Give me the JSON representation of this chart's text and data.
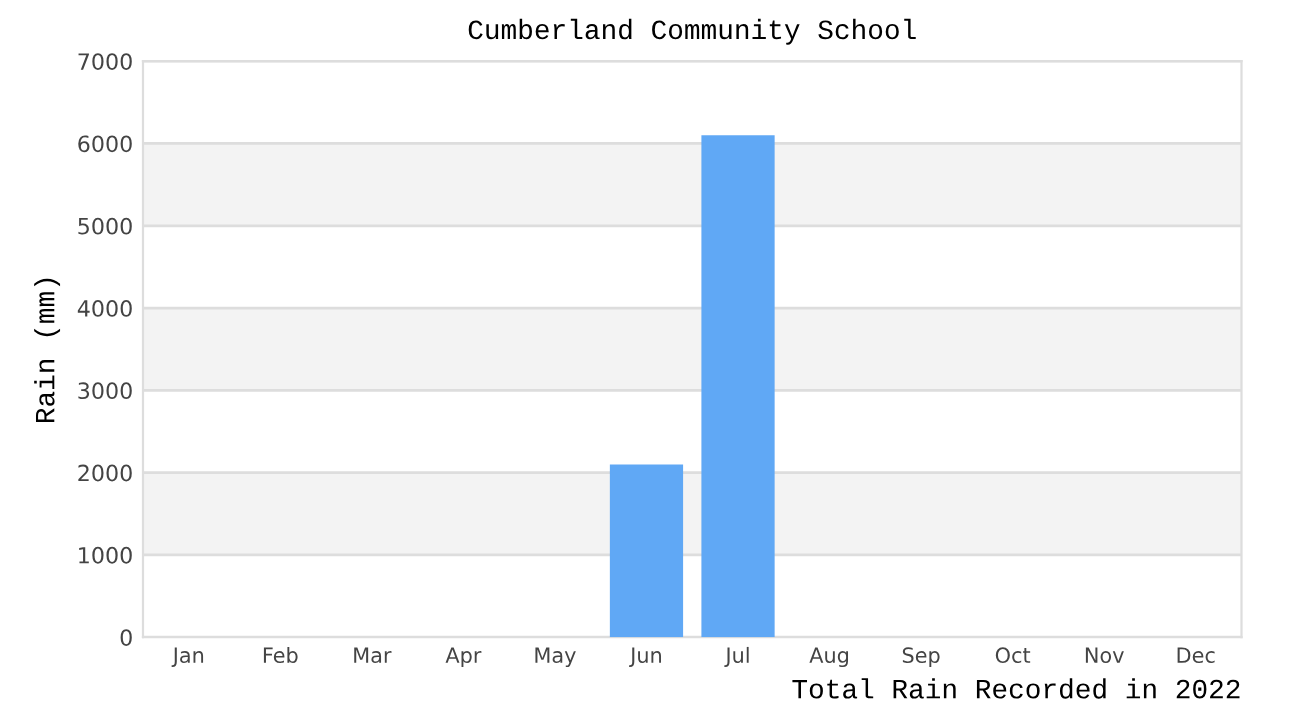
{
  "chart_data": {
    "type": "bar",
    "title": "Cumberland Community School",
    "xlabel": "Total Rain Recorded in 2022",
    "ylabel": "Rain (mm)",
    "categories": [
      "Jan",
      "Feb",
      "Mar",
      "Apr",
      "May",
      "Jun",
      "Jul",
      "Aug",
      "Sep",
      "Oct",
      "Nov",
      "Dec"
    ],
    "values": [
      0,
      0,
      0,
      0,
      0,
      2100,
      6100,
      0,
      0,
      0,
      0,
      0
    ],
    "color": "#60a8f5",
    "ylim": [
      0,
      7000
    ],
    "yticks": [
      0,
      1000,
      2000,
      3000,
      4000,
      5000,
      6000,
      7000
    ],
    "grid": "y"
  }
}
